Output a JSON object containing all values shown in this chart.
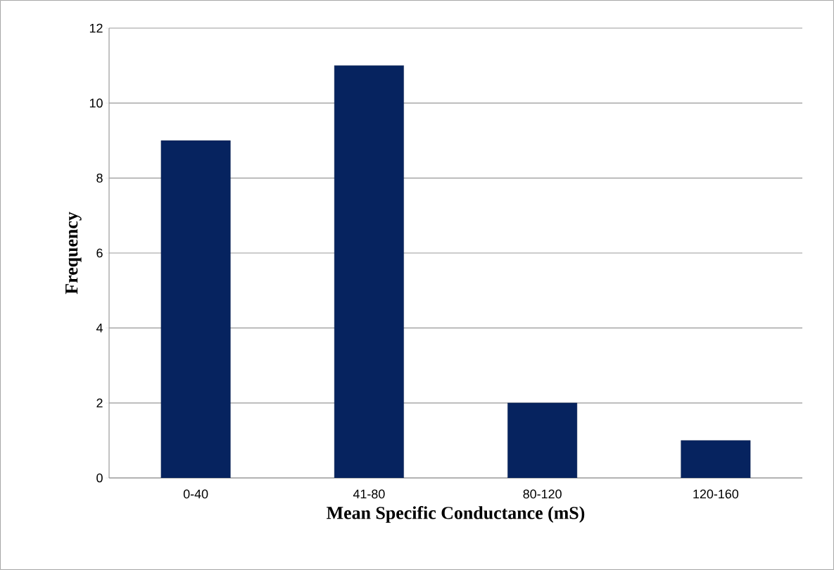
{
  "chart_data": {
    "type": "bar",
    "xlabel": "Mean Specific Conductance (mS)",
    "ylabel": "Frequency",
    "categories": [
      "0-40",
      "41-80",
      "80-120",
      "120-160"
    ],
    "values": [
      9,
      11,
      2,
      1
    ],
    "color": "#06235f",
    "ylim": [
      0,
      12
    ],
    "yticks": [
      0,
      2,
      4,
      6,
      8,
      10,
      12
    ],
    "grid": "y"
  }
}
